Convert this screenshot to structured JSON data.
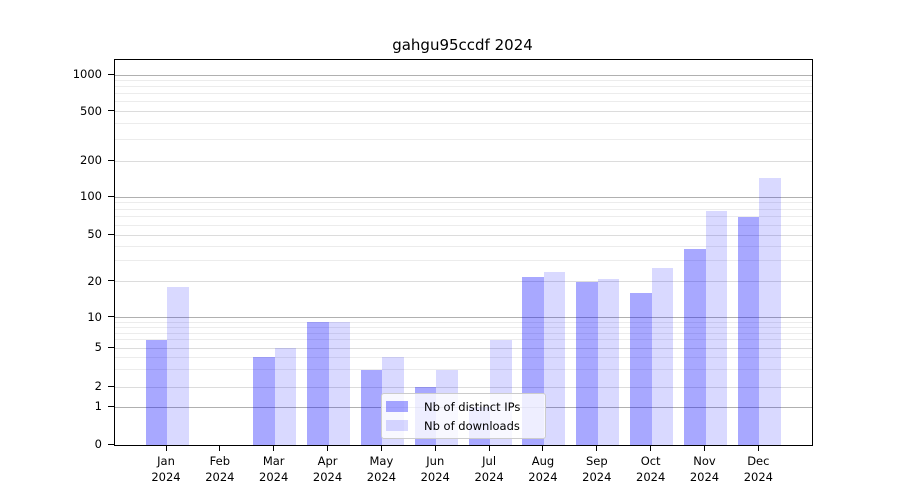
{
  "chart_data": {
    "type": "bar",
    "title": "gahgu95ccdf 2024",
    "categories": [
      "Jan",
      "Feb",
      "Mar",
      "Apr",
      "May",
      "Jun",
      "Jul",
      "Aug",
      "Sep",
      "Oct",
      "Nov",
      "Dec"
    ],
    "year_label": "2024",
    "series": [
      {
        "name": "Nb of distinct IPs",
        "color": "rgba(0,0,255,0.34)",
        "values": [
          6,
          0,
          4,
          9,
          3,
          2,
          1,
          22,
          20,
          16,
          38,
          70
        ]
      },
      {
        "name": "Nb of downloads",
        "color": "rgba(0,0,255,0.15)",
        "values": [
          18,
          0,
          5,
          9,
          4,
          3,
          6,
          24,
          21,
          26,
          78,
          144
        ]
      }
    ],
    "xlabel": "",
    "ylabel": "",
    "yticks": [
      0,
      1,
      2,
      5,
      10,
      20,
      50,
      100,
      200,
      500,
      1000
    ],
    "ylim": [
      0,
      1400
    ],
    "y_scale": "symlog",
    "grid": true,
    "legend_position": "lower center",
    "colors": {
      "decade_gridline": "#b0b0b0",
      "labeled_gridline": "#dcdcdc",
      "minor_gridline": "#ececec",
      "axis": "#000000",
      "background": "#ffffff"
    }
  }
}
